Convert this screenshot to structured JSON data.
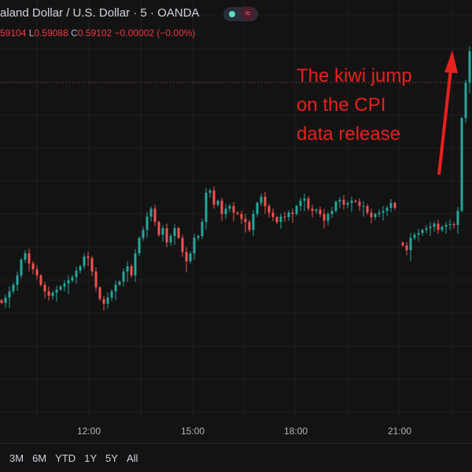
{
  "header": {
    "title": "aland Dollar / U.S. Dollar · 5 · OANDA",
    "ohlc": {
      "o_partial": "59104",
      "l_label": "L",
      "l_value": "0.59088",
      "c_label": "C",
      "c_value": "0.59102",
      "change": "−0.00002 (−0.00%)"
    },
    "status_icons": [
      "market-open-dot-icon",
      "approx-wave-icon"
    ],
    "wave_glyph": "≈"
  },
  "annotation": {
    "lines": [
      "The kiwi jump",
      "on the CPI",
      "data release"
    ],
    "color": "#e8211e"
  },
  "range_buttons": [
    "3M",
    "6M",
    "YTD",
    "1Y",
    "5Y",
    "All"
  ],
  "colors": {
    "up": "#26a69a",
    "down": "#ef5350",
    "background": "#131313",
    "grid": "#1f1f1f"
  },
  "chart_data": {
    "type": "candlestick",
    "title": "",
    "x_ticks": [
      "12:00",
      "15:00",
      "18:00",
      "21:00"
    ],
    "ylim": [
      0.58346,
      0.59289
    ],
    "grid": true,
    "sessions": [
      {
        "closes": [
          0.58604,
          0.58616,
          0.5863,
          0.58645,
          0.58666,
          0.58702,
          0.58716,
          0.58693,
          0.5868,
          0.58666,
          0.58645,
          0.5863,
          0.5862,
          0.58627,
          0.58634,
          0.58641,
          0.58648,
          0.58655,
          0.58662,
          0.58677,
          0.58687,
          0.58709,
          0.58705,
          0.58675,
          0.58639,
          0.58613,
          0.58602,
          0.58616,
          0.5863,
          0.58645,
          0.58652,
          0.58675,
          0.58687,
          0.58666,
          0.58716,
          0.58751,
          0.58769,
          0.58799,
          0.58817,
          0.58787,
          0.58758,
          0.58773,
          0.58741,
          0.58755,
          0.58773,
          0.58751,
          0.58719,
          0.58698,
          0.58716,
          0.58751,
          0.58755,
          0.58787,
          0.58853,
          0.58858,
          0.58826,
          0.58835,
          0.58805,
          0.58817,
          0.58823,
          0.58808,
          0.58805,
          0.58794,
          0.58787,
          0.58769,
          0.58805,
          0.5883,
          0.58844,
          0.58823,
          0.58808,
          0.58798,
          0.58787,
          0.58799,
          0.58798,
          0.58808,
          0.58805,
          0.58823,
          0.58835,
          0.5884,
          0.58817,
          0.58812,
          0.58815,
          0.58805,
          0.5879,
          0.58805,
          0.58812,
          0.58833,
          0.58837,
          0.58826,
          0.5883,
          0.58835,
          0.58833,
          0.58823,
          0.58823,
          0.58808,
          0.58798,
          0.58805,
          0.58808,
          0.58812,
          0.58819,
          0.5883,
          0.58819
        ]
      },
      {
        "closes": [
          0.58734,
          0.58723,
          0.58751,
          0.58758,
          0.58762,
          0.58769,
          0.58773,
          0.58776,
          0.58783,
          0.58769,
          0.58776,
          0.5878,
          0.58782,
          0.5878,
          0.58812,
          0.59022,
          0.59102,
          0.59173,
          0.59182
        ]
      }
    ],
    "price_line": 0.59102
  }
}
